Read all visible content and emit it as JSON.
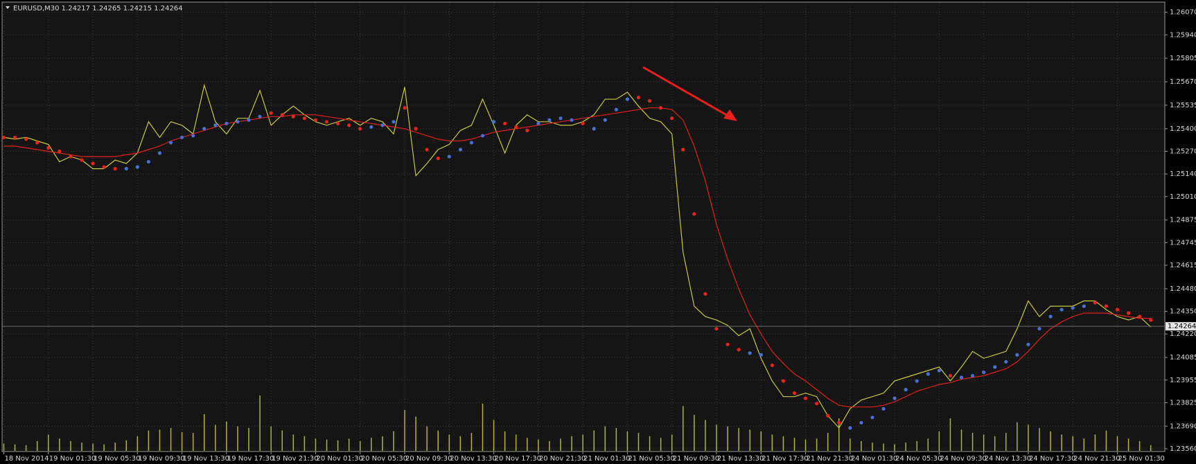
{
  "chart_data": {
    "type": "line",
    "title": "EURUSD,M30 1.24217 1.24265 1.24215 1.24264",
    "categories": [
      "18 Nov 2014",
      null,
      null,
      null,
      "19 Nov 01:30",
      null,
      null,
      null,
      "19 Nov 05:30",
      null,
      null,
      null,
      "19 Nov 09:30",
      null,
      null,
      null,
      "19 Nov 13:30",
      null,
      null,
      null,
      "19 Nov 17:30",
      null,
      null,
      null,
      "19 Nov 21:30",
      null,
      null,
      null,
      "20 Nov 01:30",
      null,
      null,
      null,
      "20 Nov 05:30",
      null,
      null,
      null,
      "20 Nov 09:30",
      null,
      null,
      null,
      "20 Nov 13:30",
      null,
      null,
      null,
      "20 Nov 17:30",
      null,
      null,
      null,
      "20 Nov 21:30",
      null,
      null,
      null,
      "21 Nov 01:30",
      null,
      null,
      null,
      "21 Nov 05:30",
      null,
      null,
      null,
      "21 Nov 09:30",
      null,
      null,
      null,
      "21 Nov 13:30",
      null,
      null,
      null,
      "21 Nov 17:30",
      null,
      null,
      null,
      "21 Nov 21:30",
      null,
      null,
      null,
      "24 Nov 01:30",
      null,
      null,
      null,
      "24 Nov 05:30",
      null,
      null,
      null,
      "24 Nov 09:30",
      null,
      null,
      null,
      "24 Nov 13:30",
      null,
      null,
      null,
      "24 Nov 17:30",
      null,
      null,
      null,
      "24 Nov 21:30",
      null,
      null,
      null,
      "25 Nov 01:30",
      null,
      null,
      null
    ],
    "series": [
      {
        "kind": "line",
        "color": "#c9c93c",
        "values": [
          1.2535,
          1.2534,
          1.2535,
          1.2533,
          1.2531,
          1.2521,
          1.2524,
          1.2522,
          1.2517,
          1.2517,
          1.2522,
          1.252,
          1.2526,
          1.2544,
          1.2535,
          1.2544,
          1.2542,
          1.2537,
          1.2565,
          1.2544,
          1.2537,
          1.2546,
          1.2546,
          1.2562,
          1.2542,
          1.2548,
          1.2553,
          1.2548,
          1.2544,
          1.2542,
          1.2544,
          1.2546,
          1.2542,
          1.2546,
          1.2544,
          1.2537,
          1.2564,
          1.2513,
          1.252,
          1.2528,
          1.2531,
          1.2539,
          1.2542,
          1.2557,
          1.2542,
          1.2526,
          1.2542,
          1.2548,
          1.2544,
          1.2544,
          1.2542,
          1.2542,
          1.2544,
          1.2548,
          1.2557,
          1.2557,
          1.2561,
          1.2553,
          1.2546,
          1.2544,
          1.2537,
          1.2469,
          1.2438,
          1.2432,
          1.243,
          1.2427,
          1.2421,
          1.2425,
          1.2408,
          1.2395,
          1.2386,
          1.2386,
          1.2388,
          1.2386,
          1.2375,
          1.2368,
          1.2379,
          1.2384,
          1.2386,
          1.2388,
          1.2395,
          1.2397,
          1.2399,
          1.2401,
          1.2403,
          1.2395,
          1.2403,
          1.2412,
          1.2408,
          1.241,
          1.2412,
          1.2425,
          1.2441,
          1.2432,
          1.2438,
          1.2438,
          1.2438,
          1.2441,
          1.2441,
          1.2436,
          1.2432,
          1.243,
          1.2432,
          1.2426
        ]
      },
      {
        "kind": "line",
        "color": "#e0201e",
        "values": [
          1.253,
          1.253,
          1.2529,
          1.2528,
          1.2527,
          1.2526,
          1.2525,
          1.2524,
          1.2524,
          1.2524,
          1.2524,
          1.2525,
          1.2526,
          1.2528,
          1.253,
          1.2533,
          1.2535,
          1.2537,
          1.2539,
          1.2541,
          1.2543,
          1.2544,
          1.2545,
          1.2546,
          1.2547,
          1.2547,
          1.2548,
          1.2548,
          1.2548,
          1.2547,
          1.2546,
          1.2545,
          1.2544,
          1.2543,
          1.2542,
          1.2541,
          1.254,
          1.2538,
          1.2536,
          1.2534,
          1.2533,
          1.2533,
          1.2534,
          1.2536,
          1.2538,
          1.2539,
          1.254,
          1.2541,
          1.2542,
          1.2543,
          1.2544,
          1.2545,
          1.2546,
          1.2547,
          1.2548,
          1.2549,
          1.255,
          1.2551,
          1.2552,
          1.2552,
          1.2551,
          1.2545,
          1.253,
          1.251,
          1.2485,
          1.2465,
          1.2448,
          1.2433,
          1.2422,
          1.2412,
          1.2405,
          1.2399,
          1.2395,
          1.239,
          1.2385,
          1.2381,
          1.238,
          1.238,
          1.238,
          1.2381,
          1.2383,
          1.2386,
          1.2389,
          1.2391,
          1.2393,
          1.2394,
          1.2396,
          1.2397,
          1.2398,
          1.24,
          1.2402,
          1.2406,
          1.2412,
          1.2419,
          1.2425,
          1.2429,
          1.2432,
          1.2434,
          1.2434,
          1.2434,
          1.2433,
          1.2432,
          1.2431,
          1.2431
        ]
      },
      {
        "kind": "dots",
        "color": "#e8241c",
        "values": [
          1.2535,
          1.2535,
          1.2534,
          1.2532,
          1.2529,
          1.2527,
          1.2524,
          1.2522,
          1.252,
          1.2518,
          1.2517,
          null,
          null,
          null,
          null,
          null,
          null,
          null,
          null,
          null,
          null,
          null,
          null,
          null,
          1.2549,
          1.2548,
          1.2547,
          1.2546,
          1.2545,
          1.2544,
          1.2543,
          1.2542,
          1.254,
          null,
          null,
          null,
          1.2552,
          1.254,
          1.2528,
          1.2523,
          null,
          null,
          null,
          null,
          null,
          1.2543,
          1.2541,
          1.2539,
          null,
          null,
          null,
          null,
          1.2543,
          null,
          null,
          null,
          null,
          1.2558,
          1.2556,
          1.2552,
          1.2546,
          1.2528,
          1.2491,
          1.2445,
          1.2425,
          1.2416,
          1.2413,
          null,
          null,
          1.2404,
          1.2395,
          1.2388,
          1.2385,
          1.2382,
          1.2375,
          1.2371,
          null,
          null,
          null,
          null,
          null,
          null,
          null,
          null,
          null,
          1.2398,
          null,
          null,
          null,
          null,
          null,
          null,
          null,
          null,
          null,
          null,
          null,
          null,
          1.244,
          1.2438,
          1.2436,
          1.2434,
          1.2432,
          1.243
        ]
      },
      {
        "kind": "dots",
        "color": "#4a6fd6",
        "values": [
          null,
          null,
          null,
          null,
          null,
          null,
          null,
          null,
          null,
          null,
          null,
          1.2517,
          1.2518,
          1.2521,
          1.2526,
          1.2532,
          1.2535,
          1.2536,
          1.254,
          1.2542,
          1.2543,
          1.2544,
          1.2545,
          1.2547,
          null,
          null,
          null,
          null,
          null,
          null,
          null,
          null,
          null,
          1.2541,
          1.2542,
          1.2544,
          null,
          null,
          null,
          null,
          1.2524,
          1.2528,
          1.2532,
          1.2536,
          1.2544,
          null,
          null,
          null,
          1.2543,
          1.2545,
          1.2546,
          1.2545,
          null,
          1.254,
          1.2545,
          1.2551,
          1.2557,
          null,
          null,
          null,
          null,
          null,
          null,
          null,
          null,
          null,
          null,
          1.2411,
          1.241,
          null,
          null,
          null,
          null,
          null,
          null,
          null,
          1.2368,
          1.2371,
          1.2374,
          1.2379,
          1.2385,
          1.239,
          1.2395,
          1.2399,
          1.2401,
          null,
          1.2397,
          1.2398,
          1.24,
          1.2403,
          1.2406,
          1.241,
          1.2416,
          1.2425,
          1.2432,
          1.2436,
          1.2437,
          1.2438,
          null,
          null,
          null,
          null,
          null,
          null
        ]
      }
    ],
    "volume": {
      "color": "#b4b43c",
      "values": [
        900,
        800,
        700,
        1200,
        2000,
        1500,
        1200,
        1000,
        900,
        800,
        1000,
        1300,
        1800,
        2500,
        2600,
        2800,
        2300,
        2200,
        4500,
        3200,
        3600,
        3000,
        2800,
        6800,
        3000,
        2500,
        2000,
        1800,
        1500,
        1400,
        1300,
        1500,
        1200,
        1600,
        1800,
        2400,
        5000,
        4200,
        3000,
        2500,
        2000,
        1800,
        2200,
        5800,
        3800,
        2400,
        2000,
        1600,
        1400,
        1200,
        1500,
        1800,
        2000,
        2500,
        3000,
        2800,
        2400,
        2200,
        1800,
        1600,
        2000,
        5500,
        4400,
        3800,
        3200,
        3000,
        2800,
        2600,
        2400,
        2000,
        1800,
        1600,
        1400,
        1500,
        2200,
        4000,
        1500,
        1200,
        1000,
        900,
        800,
        1000,
        1200,
        1500,
        2400,
        4000,
        2600,
        2200,
        2000,
        1800,
        2200,
        3500,
        3200,
        2800,
        2400,
        2000,
        1800,
        1500,
        2000,
        2500,
        1800,
        1500,
        1200,
        700
      ]
    },
    "ylim": [
      1.2356,
      1.2607
    ],
    "yticks": [
      {
        "value": 1.2607,
        "label": "1.26070"
      },
      {
        "value": 1.2594,
        "label": "1.25940"
      },
      {
        "value": 1.25805,
        "label": "1.25805"
      },
      {
        "value": 1.2567,
        "label": "1.25670"
      },
      {
        "value": 1.25535,
        "label": "1.25535"
      },
      {
        "value": 1.254,
        "label": "1.25400"
      },
      {
        "value": 1.2527,
        "label": "1.25270"
      },
      {
        "value": 1.2514,
        "label": "1.25140"
      },
      {
        "value": 1.2501,
        "label": "1.25010"
      },
      {
        "value": 1.24875,
        "label": "1.24875"
      },
      {
        "value": 1.24745,
        "label": "1.24745"
      },
      {
        "value": 1.24615,
        "label": "1.24615"
      },
      {
        "value": 1.2448,
        "label": "1.24480"
      },
      {
        "value": 1.2435,
        "label": "1.24350"
      },
      {
        "value": 1.2422,
        "label": "1.24220"
      },
      {
        "value": 1.24085,
        "label": "1.24085"
      },
      {
        "value": 1.23955,
        "label": "1.23955"
      },
      {
        "value": 1.23825,
        "label": "1.23825"
      },
      {
        "value": 1.2369,
        "label": "1.23690"
      },
      {
        "value": 1.2356,
        "label": "1.23560"
      }
    ],
    "current_price": 1.24264,
    "grid": true
  }
}
